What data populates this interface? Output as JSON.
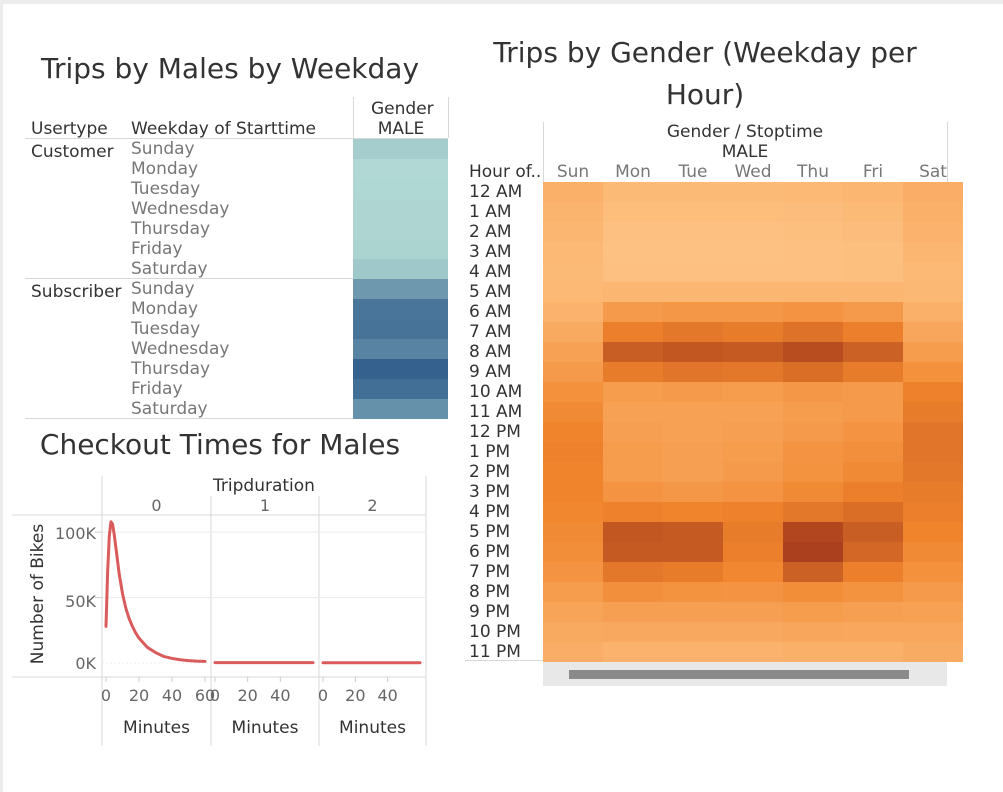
{
  "chart_data": [
    {
      "type": "table",
      "title": "Trips by Males by Weekday",
      "row_headers": [
        "Usertype",
        "Weekday of Starttime"
      ],
      "column_header_title": "Gender",
      "column": "MALE",
      "groups": [
        {
          "usertype": "Customer",
          "days": [
            "Sunday",
            "Monday",
            "Tuesday",
            "Wednesday",
            "Thursday",
            "Friday",
            "Saturday"
          ],
          "intensity": [
            0.16,
            0.08,
            0.09,
            0.1,
            0.1,
            0.12,
            0.2
          ]
        },
        {
          "usertype": "Subscriber",
          "days": [
            "Sunday",
            "Monday",
            "Tuesday",
            "Wednesday",
            "Thursday",
            "Friday",
            "Saturday"
          ],
          "intensity": [
            0.55,
            0.8,
            0.82,
            0.7,
            0.95,
            0.85,
            0.6
          ]
        }
      ],
      "colors": {
        "low": "#bce3da",
        "high": "#2d5a8a"
      }
    },
    {
      "type": "heatmap",
      "title": "Trips by Gender (Weekday per Hour)",
      "column_header_title": "Gender  /  Stoptime",
      "column_group": "MALE",
      "row_header": "Hour of..",
      "columns": [
        "Sun",
        "Mon",
        "Tue",
        "Wed",
        "Thu",
        "Fri",
        "Sat"
      ],
      "rows": [
        "12 AM",
        "1 AM",
        "2 AM",
        "3 AM",
        "4 AM",
        "5 AM",
        "6 AM",
        "7 AM",
        "8 AM",
        "9 AM",
        "10 AM",
        "11 AM",
        "12 PM",
        "1 PM",
        "2 PM",
        "3 PM",
        "4 PM",
        "5 PM",
        "6 PM",
        "7 PM",
        "8 PM",
        "9 PM",
        "10 PM",
        "11 PM"
      ],
      "intensity": [
        [
          0.2,
          0.12,
          0.12,
          0.12,
          0.13,
          0.15,
          0.22
        ],
        [
          0.17,
          0.09,
          0.09,
          0.09,
          0.1,
          0.12,
          0.2
        ],
        [
          0.15,
          0.07,
          0.07,
          0.07,
          0.08,
          0.1,
          0.18
        ],
        [
          0.13,
          0.06,
          0.06,
          0.06,
          0.07,
          0.08,
          0.15
        ],
        [
          0.12,
          0.07,
          0.07,
          0.07,
          0.07,
          0.08,
          0.13
        ],
        [
          0.13,
          0.15,
          0.15,
          0.15,
          0.15,
          0.15,
          0.14
        ],
        [
          0.18,
          0.38,
          0.4,
          0.4,
          0.42,
          0.38,
          0.2
        ],
        [
          0.25,
          0.58,
          0.62,
          0.6,
          0.66,
          0.58,
          0.28
        ],
        [
          0.32,
          0.78,
          0.82,
          0.8,
          0.88,
          0.76,
          0.36
        ],
        [
          0.38,
          0.6,
          0.64,
          0.62,
          0.68,
          0.6,
          0.45
        ],
        [
          0.45,
          0.36,
          0.38,
          0.36,
          0.4,
          0.38,
          0.56
        ],
        [
          0.5,
          0.32,
          0.32,
          0.32,
          0.36,
          0.38,
          0.6
        ],
        [
          0.55,
          0.34,
          0.32,
          0.34,
          0.38,
          0.42,
          0.64
        ],
        [
          0.56,
          0.36,
          0.34,
          0.36,
          0.42,
          0.46,
          0.64
        ],
        [
          0.55,
          0.36,
          0.34,
          0.38,
          0.44,
          0.5,
          0.62
        ],
        [
          0.55,
          0.42,
          0.4,
          0.42,
          0.5,
          0.58,
          0.6
        ],
        [
          0.53,
          0.56,
          0.55,
          0.56,
          0.62,
          0.68,
          0.58
        ],
        [
          0.5,
          0.82,
          0.8,
          0.6,
          0.92,
          0.78,
          0.55
        ],
        [
          0.47,
          0.8,
          0.8,
          0.58,
          0.96,
          0.72,
          0.5
        ],
        [
          0.42,
          0.62,
          0.6,
          0.52,
          0.76,
          0.58,
          0.45
        ],
        [
          0.36,
          0.46,
          0.44,
          0.42,
          0.48,
          0.44,
          0.38
        ],
        [
          0.3,
          0.34,
          0.34,
          0.34,
          0.36,
          0.34,
          0.32
        ],
        [
          0.25,
          0.26,
          0.26,
          0.26,
          0.28,
          0.27,
          0.27
        ],
        [
          0.22,
          0.18,
          0.18,
          0.18,
          0.2,
          0.2,
          0.24
        ]
      ],
      "colors": {
        "low": "#ffc98c",
        "mid": "#f0842c",
        "high": "#a3391c"
      }
    },
    {
      "type": "line",
      "title": "Checkout Times for Males",
      "column_header_title": "Tripduration",
      "panels": [
        {
          "label": "0",
          "xlabel": "Minutes",
          "x_ticks": [
            "0",
            "20",
            "40",
            "60"
          ],
          "xlim": [
            0,
            60
          ],
          "x": [
            0,
            1,
            2,
            3,
            4,
            5,
            6,
            7,
            8,
            10,
            12,
            14,
            16,
            18,
            20,
            25,
            30,
            35,
            40,
            45,
            50,
            55,
            60
          ],
          "y": [
            28000,
            70000,
            97000,
            108000,
            106000,
            98000,
            88000,
            78000,
            68000,
            53000,
            42000,
            34000,
            28000,
            23000,
            19000,
            12000,
            8000,
            5000,
            3500,
            2500,
            1800,
            1400,
            1200
          ]
        },
        {
          "label": "1",
          "xlabel": "Minutes",
          "x_ticks": [
            "0",
            "20",
            "40"
          ],
          "xlim": [
            0,
            60
          ],
          "x": [
            0,
            60
          ],
          "y": [
            300,
            300
          ]
        },
        {
          "label": "2",
          "xlabel": "Minutes",
          "x_ticks": [
            "0",
            "20",
            "40"
          ],
          "xlim": [
            0,
            60
          ],
          "x": [
            0,
            60
          ],
          "y": [
            200,
            200
          ]
        }
      ],
      "ylabel": "Number of Bikes",
      "y_ticks": [
        "100K",
        "50K",
        "0K"
      ],
      "ylim": [
        0,
        120000
      ],
      "line_color": "#d95b5b"
    }
  ]
}
